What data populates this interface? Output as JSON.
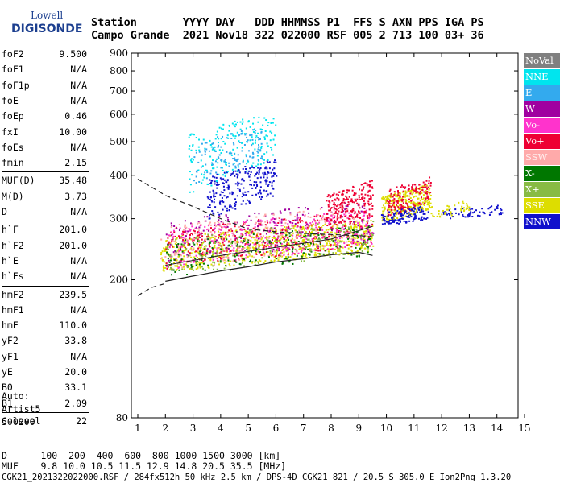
{
  "logo": {
    "brand": "Lowell",
    "name": "DIGISONDE",
    "name_color": "#1c3f8f"
  },
  "header": {
    "line1": "Station       YYYY DAY   DDD HHMMSS P1  FFS S AXN PPS IGA PS",
    "line2": "Campo Grande  2021 Nov18 322 022000 RSF 005 2 713 100 03+ 36"
  },
  "params": {
    "group1": [
      {
        "label": "foF2",
        "value": "9.500"
      },
      {
        "label": "foF1",
        "value": "N/A"
      },
      {
        "label": "foF1p",
        "value": "N/A"
      },
      {
        "label": "foE",
        "value": "N/A"
      },
      {
        "label": "foEp",
        "value": "0.46"
      },
      {
        "label": "fxI",
        "value": "10.00"
      },
      {
        "label": "foEs",
        "value": "N/A"
      },
      {
        "label": "fmin",
        "value": "2.15"
      }
    ],
    "group2": [
      {
        "label": "MUF(D)",
        "value": "35.48"
      },
      {
        "label": "M(D)",
        "value": "3.73"
      },
      {
        "label": "D",
        "value": "N/A"
      }
    ],
    "group3": [
      {
        "label": "h`F",
        "value": "201.0"
      },
      {
        "label": "h`F2",
        "value": "201.0"
      },
      {
        "label": "h`E",
        "value": "N/A"
      },
      {
        "label": "h`Es",
        "value": "N/A"
      }
    ],
    "group4": [
      {
        "label": "hmF2",
        "value": "239.5"
      },
      {
        "label": "hmF1",
        "value": "N/A"
      },
      {
        "label": "hmE",
        "value": "110.0"
      },
      {
        "label": "yF2",
        "value": "33.8"
      },
      {
        "label": "yF1",
        "value": "N/A"
      },
      {
        "label": "yE",
        "value": "20.0"
      },
      {
        "label": "B0",
        "value": "33.1"
      },
      {
        "label": "B1",
        "value": "2.09"
      }
    ],
    "group5": [
      {
        "label": "C-level",
        "value": "22"
      }
    ]
  },
  "auto": {
    "line1": "Auto:",
    "line2": "Artist5",
    "line3": "500200"
  },
  "legend": [
    {
      "label": "NoVal",
      "color": "#808080"
    },
    {
      "label": "NNE",
      "color": "#00e5ee"
    },
    {
      "label": "E",
      "color": "#33aaee"
    },
    {
      "label": "W",
      "color": "#a000a0"
    },
    {
      "label": "Vo-",
      "color": "#ff33cc"
    },
    {
      "label": "Vo+",
      "color": "#ee0033"
    },
    {
      "label": "SSW",
      "color": "#ffaaaa"
    },
    {
      "label": "X-",
      "color": "#007700"
    },
    {
      "label": "X+",
      "color": "#88bb44"
    },
    {
      "label": "SSE",
      "color": "#dddd00"
    },
    {
      "label": "NNW",
      "color": "#1010cc"
    }
  ],
  "footer": {
    "line1": "D      100  200  400  600  800 1000 1500 3000 [km]",
    "line2": "MUF    9.8 10.0 10.5 11.5 12.9 14.8 20.5 35.5 [MHz]",
    "line3": "CGK21_2021322022000.RSF / 284fx512h 50 kHz 2.5 km / DPS-4D CGK21 821 / 20.5 S 305.0 E Ion2Png 1.3.20"
  },
  "chart_data": {
    "type": "scatter",
    "xlim": [
      1,
      15
    ],
    "ylim": [
      80,
      900
    ],
    "y_scale": "log",
    "x_ticks": [
      1,
      2,
      3,
      4,
      5,
      6,
      7,
      8,
      9,
      10,
      11,
      12,
      13,
      14,
      15
    ],
    "y_ticks": [
      80,
      200,
      300,
      400,
      500,
      600,
      700,
      800,
      900
    ],
    "clusters": [
      {
        "name": "SSE",
        "color": "#dddd00",
        "x": [
          1.8,
          9.5
        ],
        "y": [
          210,
          300
        ],
        "n": 700
      },
      {
        "name": "Vo+",
        "color": "#ee0033",
        "x": [
          2.0,
          9.5
        ],
        "y": [
          215,
          320
        ],
        "n": 350
      },
      {
        "name": "Vo-",
        "color": "#ff33cc",
        "x": [
          2.0,
          9.5
        ],
        "y": [
          215,
          320
        ],
        "n": 300
      },
      {
        "name": "W",
        "color": "#a000a0",
        "x": [
          2.0,
          9.5
        ],
        "y": [
          220,
          340
        ],
        "n": 200
      },
      {
        "name": "SSW",
        "color": "#ffaaaa",
        "x": [
          1.8,
          9.0
        ],
        "y": [
          210,
          330
        ],
        "n": 250
      },
      {
        "name": "X-",
        "color": "#007700",
        "x": [
          2.0,
          9.5
        ],
        "y": [
          205,
          290
        ],
        "n": 200
      },
      {
        "name": "X+",
        "color": "#88bb44",
        "x": [
          2.0,
          9.5
        ],
        "y": [
          205,
          300
        ],
        "n": 150
      },
      {
        "name": "NNW",
        "color": "#1010cc",
        "x": [
          3.5,
          6.0
        ],
        "y": [
          300,
          450
        ],
        "n": 250
      },
      {
        "name": "NNE",
        "color": "#00e5ee",
        "x": [
          2.8,
          6.0
        ],
        "y": [
          350,
          620
        ],
        "n": 200
      },
      {
        "name": "E",
        "color": "#33aaee",
        "x": [
          3.0,
          5.5
        ],
        "y": [
          380,
          560
        ],
        "n": 120
      },
      {
        "name": "Vo+",
        "color": "#ee0033",
        "x": [
          7.8,
          9.5
        ],
        "y": [
          280,
          390
        ],
        "n": 200
      },
      {
        "name": "SSE",
        "color": "#dddd00",
        "x": [
          9.8,
          11.6
        ],
        "y": [
          290,
          380
        ],
        "n": 280
      },
      {
        "name": "Vo+",
        "color": "#ee0033",
        "x": [
          10.0,
          11.6
        ],
        "y": [
          300,
          400
        ],
        "n": 150
      },
      {
        "name": "NNW",
        "color": "#1010cc",
        "x": [
          9.8,
          11.5
        ],
        "y": [
          285,
          330
        ],
        "n": 120
      },
      {
        "name": "NNW",
        "color": "#1010cc",
        "x": [
          12.0,
          14.2
        ],
        "y": [
          300,
          330
        ],
        "n": 60
      },
      {
        "name": "SSE",
        "color": "#dddd00",
        "x": [
          11.5,
          13.0
        ],
        "y": [
          300,
          340
        ],
        "n": 40
      }
    ],
    "curves": [
      {
        "name": "dashed",
        "style": "dashed",
        "points": [
          [
            1.0,
            390
          ],
          [
            1.5,
            370
          ],
          [
            2.0,
            350
          ],
          [
            3.0,
            325
          ],
          [
            4.0,
            300
          ],
          [
            5.0,
            280
          ],
          [
            6.0,
            275
          ],
          [
            7.0,
            272
          ],
          [
            8.0,
            270
          ],
          [
            9.0,
            268
          ],
          [
            9.5,
            266
          ]
        ],
        "lower": [
          [
            1.0,
            180
          ],
          [
            1.5,
            190
          ],
          [
            2.0,
            195
          ]
        ]
      },
      {
        "name": "solid",
        "style": "solid",
        "points": [
          [
            2.0,
            198
          ],
          [
            3.0,
            205
          ],
          [
            4.0,
            212
          ],
          [
            5.0,
            218
          ],
          [
            6.0,
            225
          ],
          [
            7.0,
            230
          ],
          [
            8.0,
            236
          ],
          [
            9.0,
            240
          ],
          [
            9.5,
            235
          ]
        ],
        "upper": [
          [
            2.0,
            220
          ],
          [
            4.0,
            235
          ],
          [
            6.0,
            248
          ],
          [
            8.0,
            262
          ],
          [
            9.5,
            285
          ]
        ]
      }
    ]
  }
}
